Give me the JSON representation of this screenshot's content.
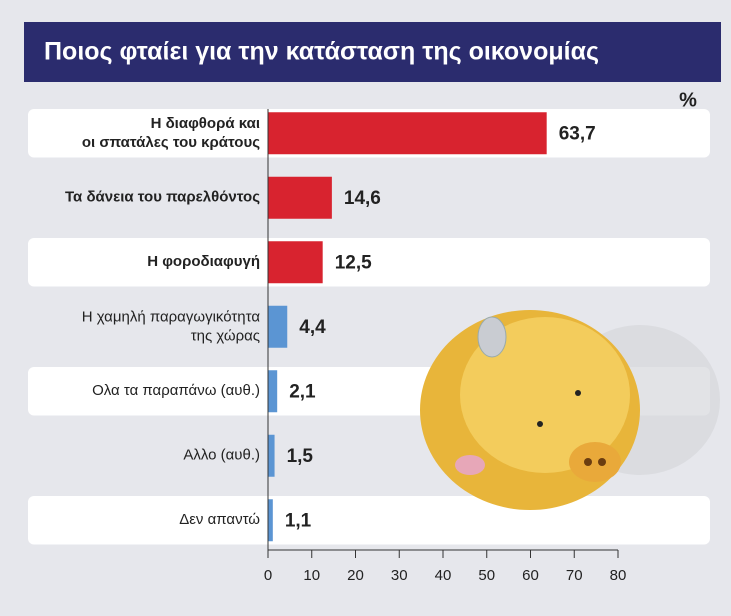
{
  "chart_data": {
    "type": "hbar",
    "title": "Ποιος φταίει για την κατάσταση της οικονομίας",
    "unit_label": "%",
    "categories": [
      "Η διαφθορά και\nοι σπατάλες του κράτους",
      "Τα δάνεια του παρελθόντος",
      "Η φοροδιαφυγή",
      "Η χαμηλή παραγωγικότητα\nτης χώρας",
      "Ολα τα παραπάνω (αυθ.)",
      "Αλλο (αυθ.)",
      "Δεν απαντώ"
    ],
    "values": [
      63.7,
      14.6,
      12.5,
      4.4,
      2.1,
      1.5,
      1.1
    ],
    "value_labels": [
      "63,7",
      "14,6",
      "12,5",
      "4,4",
      "2,1",
      "1,5",
      "1,1"
    ],
    "colors": [
      "#d8232f",
      "#d8232f",
      "#d8232f",
      "#5b95d3",
      "#5b95d3",
      "#5b95d3",
      "#5b95d3"
    ],
    "xlim": [
      0,
      80
    ],
    "xticks": [
      0,
      10,
      20,
      30,
      40,
      50,
      60,
      70,
      80
    ]
  }
}
